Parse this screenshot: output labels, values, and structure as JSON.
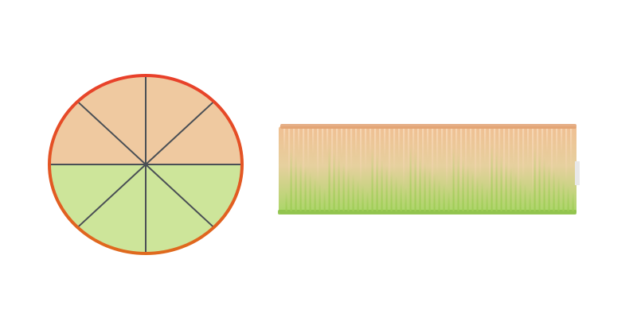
{
  "diagram": {
    "circle": {
      "sectors": 8,
      "upper_half_sectors": 4,
      "lower_half_sectors": 4,
      "upper_color": "#efc9a0",
      "lower_color": "#cde59a",
      "radial_line_color": "#4a4f55",
      "rim_color_top": "#e8402a",
      "rim_color_bottom": "#df6a1e"
    },
    "strip": {
      "description_shape": "rectangle-with-fringe",
      "top_color": "#f0bf92",
      "bottom_color": "#a9d666",
      "fringe_color_light": "#f6d7b5",
      "fringe_color_dark": "#9fcc55"
    }
  }
}
